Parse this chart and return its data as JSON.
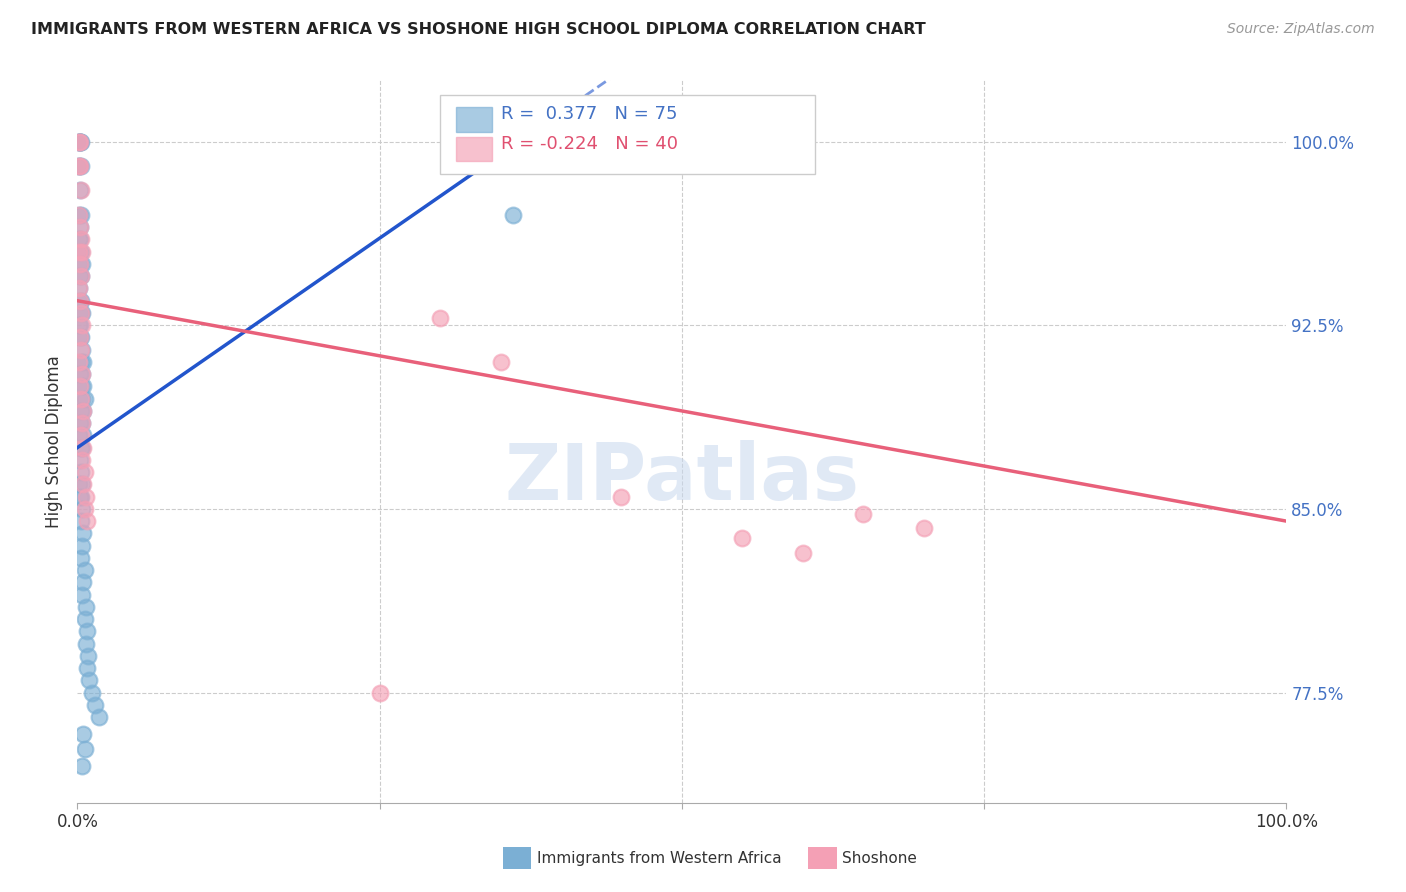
{
  "title": "IMMIGRANTS FROM WESTERN AFRICA VS SHOSHONE HIGH SCHOOL DIPLOMA CORRELATION CHART",
  "source": "Source: ZipAtlas.com",
  "ylabel": "High School Diploma",
  "yticks": [
    0.775,
    0.85,
    0.925,
    1.0
  ],
  "ytick_labels": [
    "77.5%",
    "85.0%",
    "92.5%",
    "100.0%"
  ],
  "blue_R": 0.377,
  "blue_N": 75,
  "pink_R": -0.224,
  "pink_N": 40,
  "blue_color": "#7bafd4",
  "pink_color": "#f4a0b5",
  "blue_line_color": "#2255cc",
  "pink_line_color": "#e8607a",
  "legend_label_blue": "Immigrants from Western Africa",
  "legend_label_pink": "Shoshone",
  "watermark": "ZIPatlas",
  "background_color": "#ffffff",
  "blue_x": [
    0.002,
    0.001,
    0.003,
    0.001,
    0.002,
    0.001,
    0.003,
    0.002,
    0.001,
    0.002,
    0.001,
    0.003,
    0.002,
    0.001,
    0.002,
    0.001,
    0.003,
    0.002,
    0.004,
    0.003,
    0.002,
    0.001,
    0.003,
    0.002,
    0.004,
    0.003,
    0.002,
    0.001,
    0.003,
    0.002,
    0.004,
    0.003,
    0.005,
    0.002,
    0.004,
    0.003,
    0.005,
    0.004,
    0.006,
    0.005,
    0.003,
    0.004,
    0.002,
    0.005,
    0.003,
    0.004,
    0.002,
    0.003,
    0.001,
    0.004,
    0.003,
    0.002,
    0.004,
    0.003,
    0.005,
    0.004,
    0.003,
    0.006,
    0.005,
    0.004,
    0.007,
    0.006,
    0.008,
    0.007,
    0.009,
    0.008,
    0.01,
    0.012,
    0.015,
    0.018,
    0.005,
    0.006,
    0.004,
    0.36,
    0.001
  ],
  "blue_y": [
    1.0,
    1.0,
    1.0,
    0.99,
    1.0,
    1.0,
    0.99,
    1.0,
    0.99,
    0.98,
    0.97,
    0.97,
    0.965,
    0.96,
    0.96,
    0.955,
    0.955,
    0.95,
    0.95,
    0.945,
    0.945,
    0.94,
    0.935,
    0.935,
    0.93,
    0.93,
    0.925,
    0.925,
    0.92,
    0.92,
    0.915,
    0.91,
    0.91,
    0.905,
    0.905,
    0.9,
    0.9,
    0.895,
    0.895,
    0.89,
    0.89,
    0.885,
    0.885,
    0.88,
    0.875,
    0.875,
    0.87,
    0.865,
    0.86,
    0.86,
    0.855,
    0.855,
    0.85,
    0.845,
    0.84,
    0.835,
    0.83,
    0.825,
    0.82,
    0.815,
    0.81,
    0.805,
    0.8,
    0.795,
    0.79,
    0.785,
    0.78,
    0.775,
    0.77,
    0.765,
    0.758,
    0.752,
    0.745,
    0.97,
    0.88
  ],
  "pink_x": [
    0.001,
    0.002,
    0.001,
    0.002,
    0.003,
    0.001,
    0.002,
    0.003,
    0.004,
    0.001,
    0.002,
    0.003,
    0.001,
    0.002,
    0.003,
    0.004,
    0.002,
    0.003,
    0.001,
    0.004,
    0.002,
    0.003,
    0.005,
    0.004,
    0.003,
    0.005,
    0.004,
    0.006,
    0.005,
    0.007,
    0.006,
    0.008,
    0.45,
    0.55,
    0.6,
    0.65,
    0.7,
    0.3,
    0.35,
    0.25
  ],
  "pink_y": [
    1.0,
    1.0,
    0.99,
    0.99,
    0.98,
    0.97,
    0.965,
    0.96,
    0.955,
    0.955,
    0.95,
    0.945,
    0.94,
    0.935,
    0.93,
    0.925,
    0.92,
    0.915,
    0.91,
    0.905,
    0.9,
    0.895,
    0.89,
    0.885,
    0.88,
    0.875,
    0.87,
    0.865,
    0.86,
    0.855,
    0.85,
    0.845,
    0.855,
    0.838,
    0.832,
    0.848,
    0.842,
    0.928,
    0.91,
    0.775
  ]
}
